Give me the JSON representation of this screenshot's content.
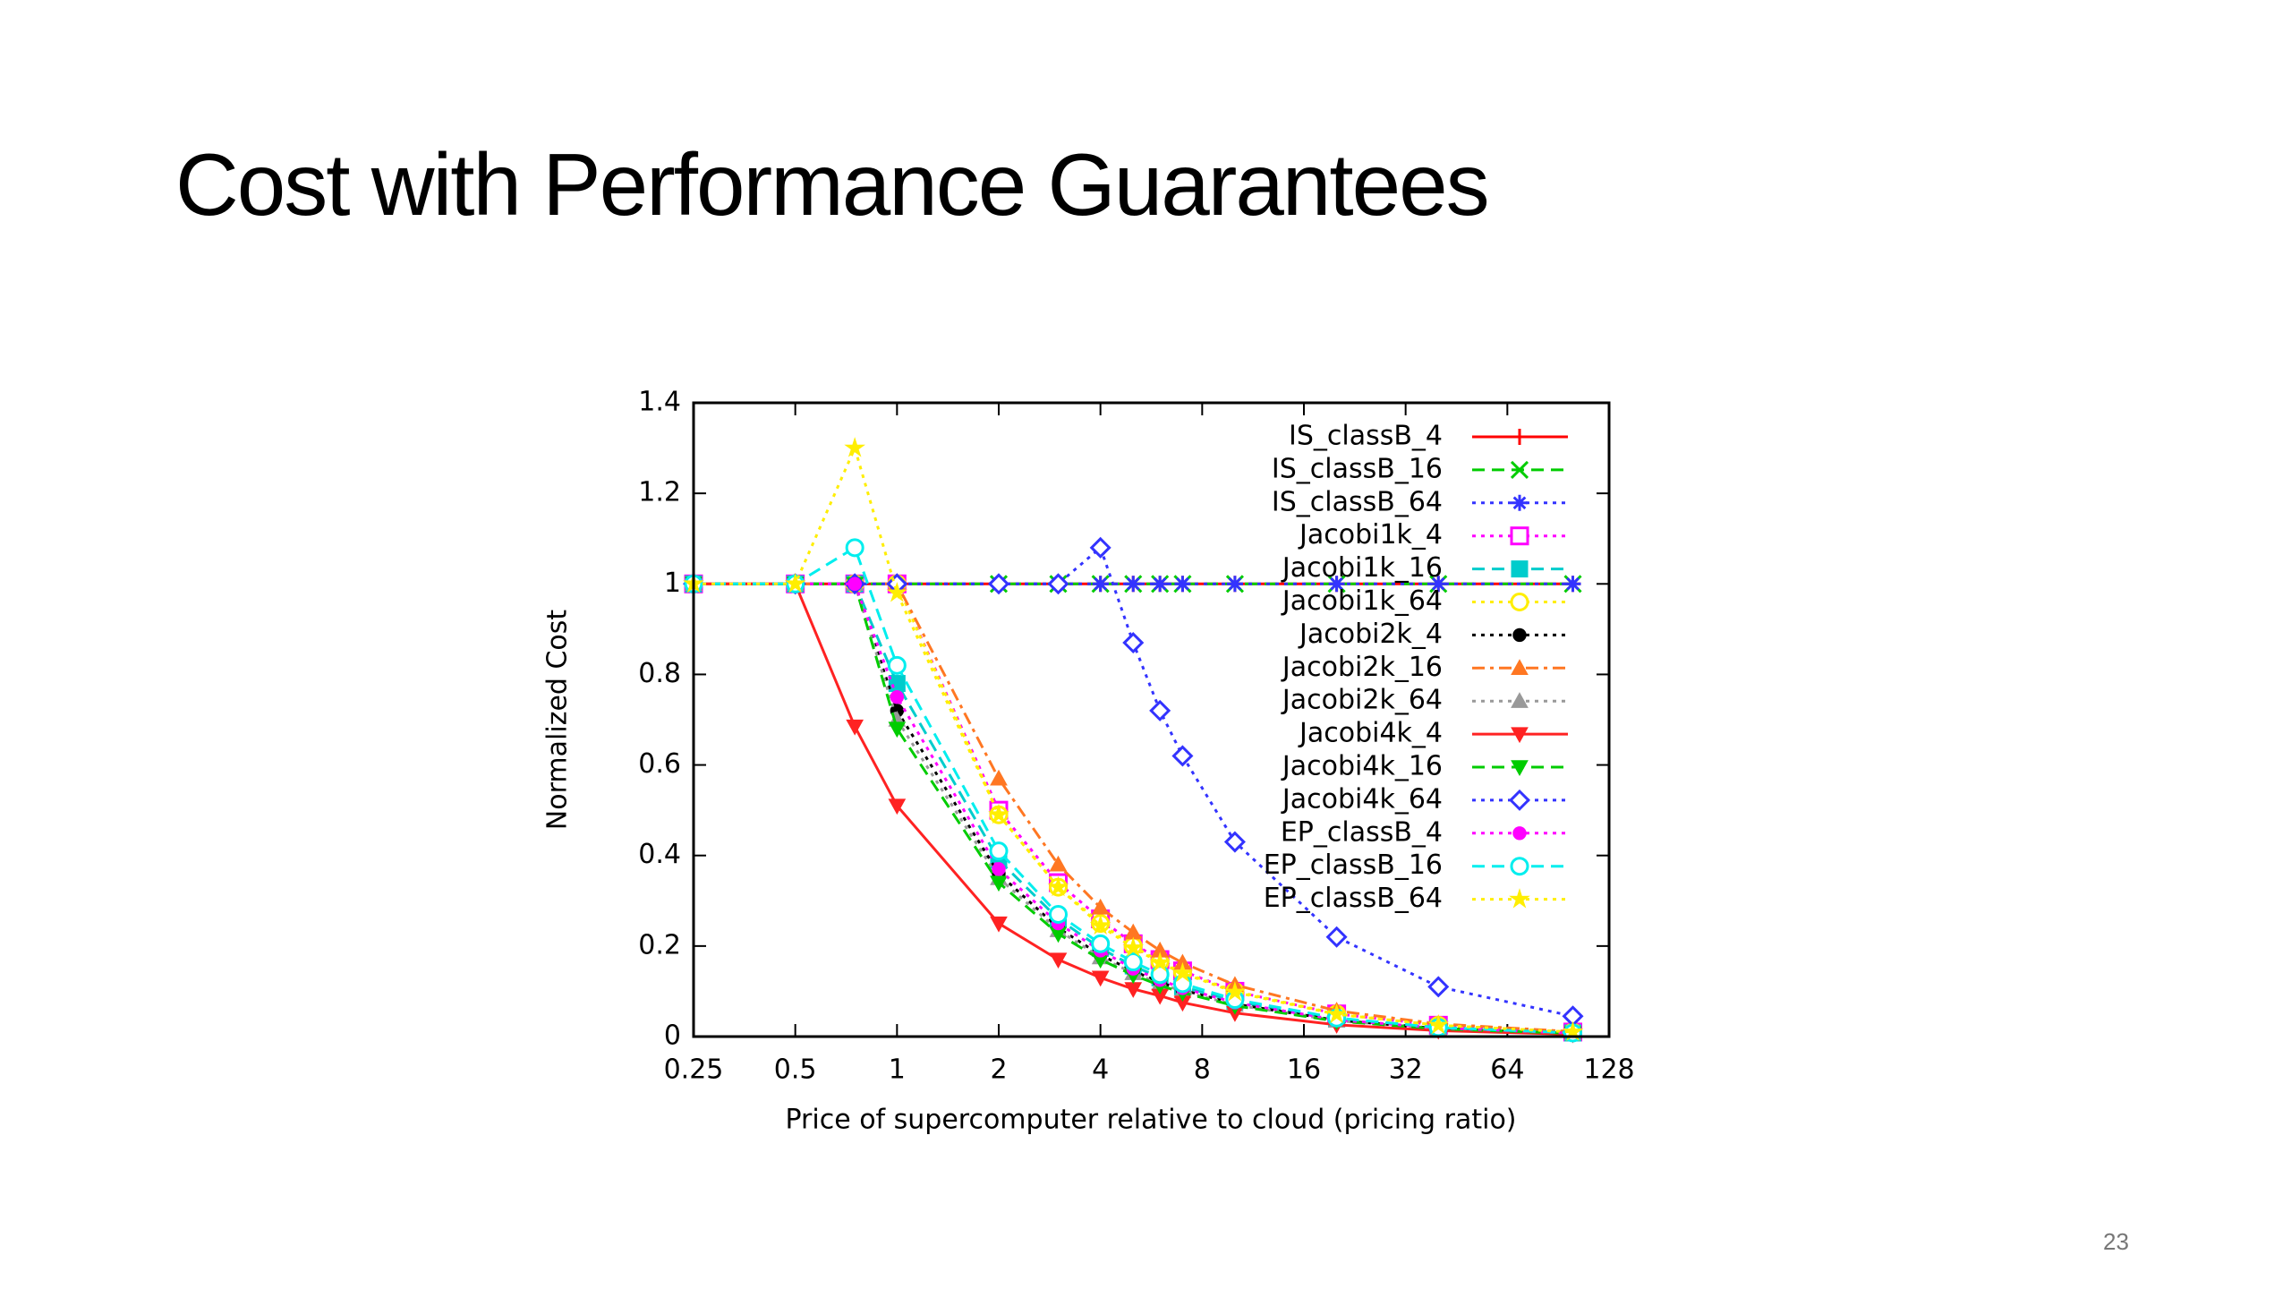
{
  "title": "Cost with Performance Guarantees",
  "page_number": "23",
  "chart_data": {
    "type": "line",
    "xlabel": "Price of supercomputer relative to cloud (pricing ratio)",
    "ylabel": "Normalized Cost",
    "xscale": "log",
    "x": [
      0.25,
      0.5,
      0.75,
      1,
      2,
      3,
      4,
      5,
      6,
      7,
      10,
      20,
      40,
      100
    ],
    "xlim": [
      0.25,
      128
    ],
    "xticks": [
      0.25,
      0.5,
      1,
      2,
      4,
      8,
      16,
      32,
      64,
      128
    ],
    "ylim": [
      0,
      1.4
    ],
    "yticks": [
      0,
      0.2,
      0.4,
      0.6,
      0.8,
      1,
      1.2,
      1.4
    ],
    "legend": "upper right",
    "series": [
      {
        "name": "IS_classB_4",
        "color": "#ff0000",
        "dash": "solid",
        "marker": "plus",
        "values": [
          1,
          1,
          1,
          1,
          1,
          1,
          1,
          1,
          1,
          1,
          1,
          1,
          1,
          1
        ]
      },
      {
        "name": "IS_classB_16",
        "color": "#00cc00",
        "dash": "dashed",
        "marker": "cross",
        "values": [
          1,
          1,
          1,
          1,
          1,
          1,
          1,
          1,
          1,
          1,
          1,
          1,
          1,
          1
        ]
      },
      {
        "name": "IS_classB_64",
        "color": "#3333ff",
        "dash": "dotted",
        "marker": "star",
        "values": [
          1,
          1,
          1,
          1,
          1,
          1,
          1,
          1,
          1,
          1,
          1,
          1,
          1,
          1
        ]
      },
      {
        "name": "Jacobi1k_4",
        "color": "#ff00ff",
        "dash": "dotted",
        "marker": "square-open",
        "values": [
          1,
          1,
          1,
          1,
          0.5,
          0.34,
          0.26,
          0.205,
          0.17,
          0.145,
          0.1,
          0.05,
          0.025,
          0.01
        ]
      },
      {
        "name": "Jacobi1k_16",
        "color": "#00cccc",
        "dash": "dashed",
        "marker": "square",
        "values": [
          1,
          1,
          1,
          0.78,
          0.39,
          0.26,
          0.195,
          0.156,
          0.13,
          0.11,
          0.078,
          0.039,
          0.02,
          0.008
        ]
      },
      {
        "name": "Jacobi1k_64",
        "color": "#ffee00",
        "dash": "dotted",
        "marker": "circle-open",
        "values": [
          1,
          1,
          1,
          1,
          0.49,
          0.33,
          0.25,
          0.2,
          0.165,
          0.142,
          0.1,
          0.05,
          0.025,
          0.01
        ]
      },
      {
        "name": "Jacobi2k_4",
        "color": "#000000",
        "dash": "dotted",
        "marker": "circle",
        "values": [
          1,
          1,
          1,
          0.72,
          0.36,
          0.24,
          0.18,
          0.145,
          0.12,
          0.103,
          0.072,
          0.036,
          0.018,
          0.007
        ]
      },
      {
        "name": "Jacobi2k_16",
        "color": "#ff7722",
        "dash": "dashdot",
        "marker": "triangle",
        "values": [
          1,
          1,
          1,
          1,
          0.57,
          0.38,
          0.285,
          0.23,
          0.19,
          0.163,
          0.114,
          0.057,
          0.028,
          0.011
        ]
      },
      {
        "name": "Jacobi2k_64",
        "color": "#999999",
        "dash": "dotted",
        "marker": "triangle",
        "values": [
          1,
          1,
          1,
          0.7,
          0.35,
          0.235,
          0.175,
          0.14,
          0.117,
          0.1,
          0.07,
          0.035,
          0.018,
          0.007
        ]
      },
      {
        "name": "Jacobi4k_4",
        "color": "#ff2222",
        "dash": "solid",
        "marker": "triangle-down",
        "values": [
          1,
          1,
          0.685,
          0.51,
          0.25,
          0.17,
          0.13,
          0.105,
          0.09,
          0.075,
          0.052,
          0.026,
          0.013,
          0.005
        ]
      },
      {
        "name": "Jacobi4k_16",
        "color": "#00cc00",
        "dash": "dashed",
        "marker": "triangle-down",
        "values": [
          1,
          1,
          1,
          0.68,
          0.34,
          0.227,
          0.17,
          0.136,
          0.113,
          0.097,
          0.068,
          0.034,
          0.017,
          0.007
        ]
      },
      {
        "name": "Jacobi4k_64",
        "color": "#3333ff",
        "dash": "dotted",
        "marker": "diamond-open",
        "values": [
          1,
          1,
          1,
          1,
          1,
          1,
          1.08,
          0.87,
          0.72,
          0.62,
          0.43,
          0.22,
          0.11,
          0.045
        ]
      },
      {
        "name": "EP_classB_4",
        "color": "#ff00ff",
        "dash": "dotted",
        "marker": "circle",
        "values": [
          1,
          1,
          1,
          0.75,
          0.37,
          0.25,
          0.19,
          0.15,
          0.125,
          0.107,
          0.075,
          0.037,
          0.019,
          0.0075
        ]
      },
      {
        "name": "EP_classB_16",
        "color": "#00eeee",
        "dash": "dashed",
        "marker": "circle-open",
        "values": [
          1,
          1,
          1.08,
          0.82,
          0.41,
          0.27,
          0.205,
          0.165,
          0.137,
          0.117,
          0.082,
          0.041,
          0.02,
          0.008
        ]
      },
      {
        "name": "EP_classB_64",
        "color": "#ffee00",
        "dash": "dotted",
        "marker": "star-filled",
        "values": [
          1,
          1,
          1.3,
          0.98,
          0.49,
          0.33,
          0.245,
          0.196,
          0.163,
          0.14,
          0.098,
          0.049,
          0.025,
          0.01
        ]
      }
    ]
  }
}
